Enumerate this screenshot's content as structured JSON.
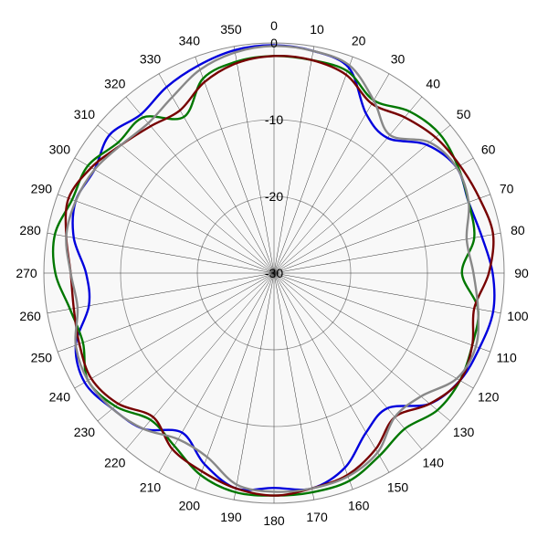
{
  "chart_data": {
    "type": "polar-line",
    "title": "",
    "angle_unit": "degrees",
    "angle_zero": "top",
    "angle_direction": "clockwise",
    "angle_ticks": [
      0,
      10,
      20,
      30,
      40,
      50,
      60,
      70,
      80,
      90,
      100,
      110,
      120,
      130,
      140,
      150,
      160,
      170,
      180,
      190,
      200,
      210,
      220,
      230,
      240,
      250,
      260,
      270,
      280,
      290,
      300,
      310,
      320,
      330,
      340,
      350
    ],
    "angle_tick_labels": [
      "0",
      "10",
      "20",
      "30",
      "40",
      "50",
      "60",
      "70",
      "80",
      "90",
      "100",
      "110",
      "120",
      "130",
      "140",
      "150",
      "160",
      "170",
      "180",
      "190",
      "200",
      "210",
      "220",
      "230",
      "240",
      "250",
      "260",
      "270",
      "280",
      "290",
      "300",
      "310",
      "320",
      "330",
      "340",
      "350"
    ],
    "radial_range": [
      -30,
      0
    ],
    "radial_ticks": [
      0,
      -10,
      -20,
      -30
    ],
    "radial_tick_labels": [
      "0",
      "-10",
      "-20",
      "-30"
    ],
    "grid": true,
    "series": [
      {
        "color": "#0000dd",
        "angles": [
          0,
          10,
          20,
          30,
          40,
          50,
          60,
          70,
          80,
          90,
          100,
          110,
          120,
          130,
          140,
          150,
          160,
          170,
          180,
          190,
          200,
          210,
          220,
          230,
          240,
          250,
          260,
          270,
          280,
          290,
          300,
          310,
          320,
          330,
          340,
          350,
          360
        ],
        "values": [
          -0.3,
          -0.6,
          -1.5,
          -6,
          -7,
          -4,
          -2.5,
          -3,
          -2.5,
          -1.5,
          -1,
          -1.5,
          -2,
          -3.5,
          -7,
          -6,
          -3,
          -1.5,
          -2,
          -1.5,
          -3.5,
          -6,
          -3.5,
          -2.5,
          -1.5,
          -2.5,
          -5.5,
          -5.5,
          -3.5,
          -2.5,
          -3,
          -2,
          -3,
          -2,
          -1.2,
          -0.5,
          -0.3
        ]
      },
      {
        "color": "#007700",
        "angles": [
          0,
          10,
          20,
          30,
          40,
          50,
          60,
          70,
          80,
          90,
          100,
          110,
          120,
          130,
          140,
          150,
          160,
          170,
          180,
          190,
          200,
          210,
          220,
          230,
          240,
          250,
          260,
          270,
          280,
          290,
          300,
          310,
          320,
          330,
          340,
          350,
          360
        ],
        "values": [
          -1.7,
          -1.8,
          -2,
          -4,
          -2.5,
          -1.8,
          -2.3,
          -3,
          -3.5,
          -5.5,
          -3,
          -2.5,
          -2,
          -2.2,
          -3.5,
          -2.5,
          -1.2,
          -1,
          -1,
          -1,
          -2,
          -4,
          -5,
          -3,
          -2,
          -3.5,
          -3,
          -1.5,
          -1,
          -2,
          -2,
          -3.5,
          -3.5,
          -6.5,
          -3,
          -2,
          -1.7
        ]
      },
      {
        "color": "#770000",
        "angles": [
          0,
          10,
          20,
          30,
          40,
          50,
          60,
          70,
          80,
          90,
          100,
          110,
          120,
          130,
          140,
          150,
          160,
          170,
          180,
          190,
          200,
          210,
          220,
          230,
          240,
          250,
          260,
          270,
          280,
          290,
          300,
          310,
          320,
          330,
          340,
          350,
          360
        ],
        "values": [
          -1.7,
          -1.8,
          -2.5,
          -4.5,
          -3.5,
          -2.5,
          -2,
          -1.5,
          -1,
          -2,
          -3.5,
          -2.5,
          -2,
          -3.5,
          -5.5,
          -3.5,
          -2,
          -1.5,
          -1,
          -1.5,
          -2.5,
          -3.5,
          -5.5,
          -3.5,
          -2.5,
          -3,
          -3.5,
          -3.5,
          -2.5,
          -1.5,
          -2.5,
          -4,
          -5,
          -5.5,
          -3.5,
          -2.2,
          -1.7
        ]
      },
      {
        "color": "#888888",
        "angles": [
          0,
          10,
          20,
          30,
          40,
          50,
          60,
          70,
          80,
          90,
          100,
          110,
          120,
          130,
          140,
          150,
          160,
          170,
          180,
          190,
          200,
          210,
          220,
          230,
          240,
          250,
          260,
          270,
          280,
          290,
          300,
          310,
          320,
          330,
          340,
          350,
          360
        ],
        "values": [
          -0.4,
          -0.6,
          -1.2,
          -4,
          -6.5,
          -3.5,
          -2.5,
          -3,
          -4.5,
          -4,
          -3,
          -2,
          -2.5,
          -5,
          -5.5,
          -3,
          -1.8,
          -1.5,
          -1.5,
          -2,
          -4.5,
          -5,
          -3.5,
          -2.5,
          -2,
          -2.5,
          -4,
          -3.5,
          -2.5,
          -2.5,
          -3,
          -4,
          -4.5,
          -3.5,
          -1.8,
          -0.8,
          -0.4
        ]
      }
    ]
  }
}
